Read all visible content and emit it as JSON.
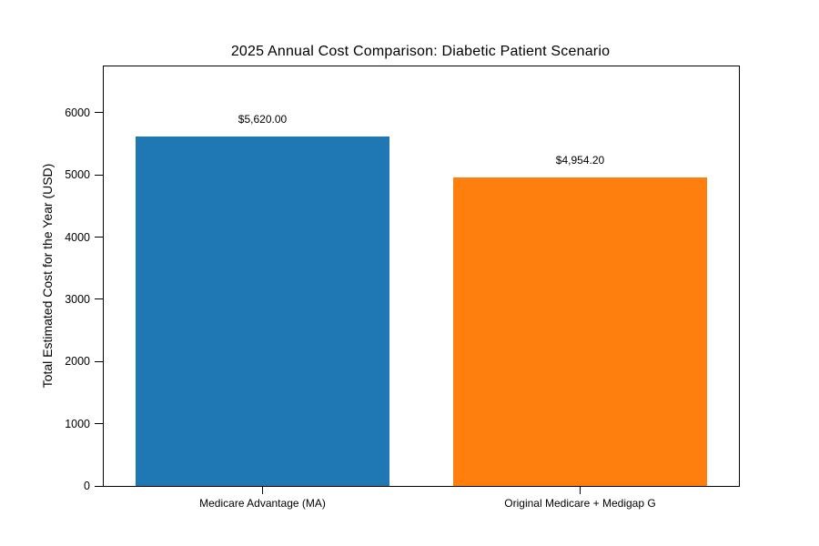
{
  "figure": {
    "title": "2025 Annual Cost Comparison: Diabetic Patient Scenario"
  },
  "chart_data": {
    "type": "bar",
    "title": "2025 Annual Cost Comparison: Diabetic Patient Scenario",
    "categories": [
      "Medicare Advantage (MA)",
      "Original Medicare + Medigap G"
    ],
    "values": [
      5620.0,
      4954.2
    ],
    "bar_value_labels": [
      "$5,620.00",
      "$4,954.20"
    ],
    "bar_colors": [
      "#1f77b4",
      "#ff7f0e"
    ],
    "xlabel": "",
    "ylabel": "Total Estimated Cost for the Year (USD)",
    "ylim": [
      0,
      6744
    ],
    "yticks": [
      0,
      1000,
      2000,
      3000,
      4000,
      5000,
      6000
    ],
    "bar_width_fraction": 0.4,
    "grid": false,
    "legend": null,
    "background_color": "#ffffff",
    "spine_color": "#000000"
  }
}
